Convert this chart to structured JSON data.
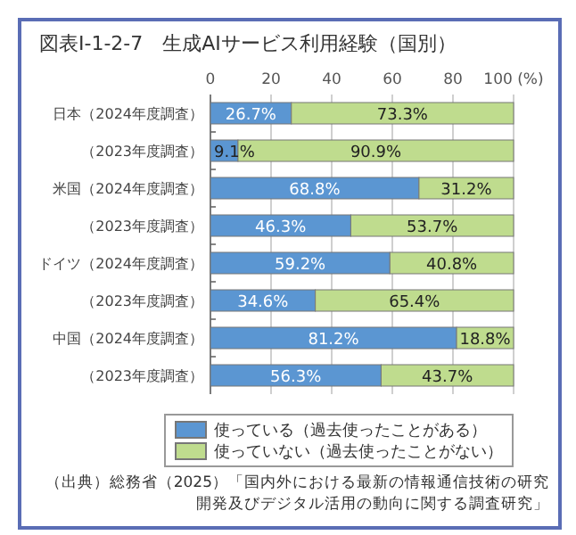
{
  "chart_data": {
    "type": "bar",
    "orientation": "horizontal",
    "stacked": true,
    "title": "図表Ⅰ-1-2-7　生成AIサービス利用経験（国別）",
    "categories": [
      "日本（2024年度調査）",
      "（2023年度調査）",
      "米国（2024年度調査）",
      "（2023年度調査）",
      "ドイツ（2024年度調査）",
      "（2023年度調査）",
      "中国（2024年度調査）",
      "（2023年度調査）"
    ],
    "series": [
      {
        "name": "使っている（過去使ったことがある）",
        "color": "#5b96d2",
        "values": [
          26.7,
          9.1,
          68.8,
          46.3,
          59.2,
          34.6,
          81.2,
          56.3
        ],
        "value_labels": [
          "26.7%",
          "9.1%",
          "68.8%",
          "46.3%",
          "59.2%",
          "34.6%",
          "81.2%",
          "56.3%"
        ]
      },
      {
        "name": "使っていない（過去使ったことがない）",
        "color": "#bfdc8e",
        "values": [
          73.3,
          90.9,
          31.2,
          53.7,
          40.8,
          65.4,
          18.8,
          43.7
        ],
        "value_labels": [
          "73.3%",
          "90.9%",
          "31.2%",
          "53.7%",
          "40.8%",
          "65.4%",
          "18.8%",
          "43.7%"
        ]
      }
    ],
    "xlim": [
      0,
      100
    ],
    "xticks": [
      0,
      20,
      40,
      60,
      80,
      {
        "value": 100,
        "label": "100 (%)"
      }
    ],
    "grid": "x",
    "legend": "bottom",
    "annotations": [
      "（出典）総務省（2025）「国内外における最新の情報通信技術の研究開発及びデジタル活用の動向に関する調査研究」"
    ]
  }
}
